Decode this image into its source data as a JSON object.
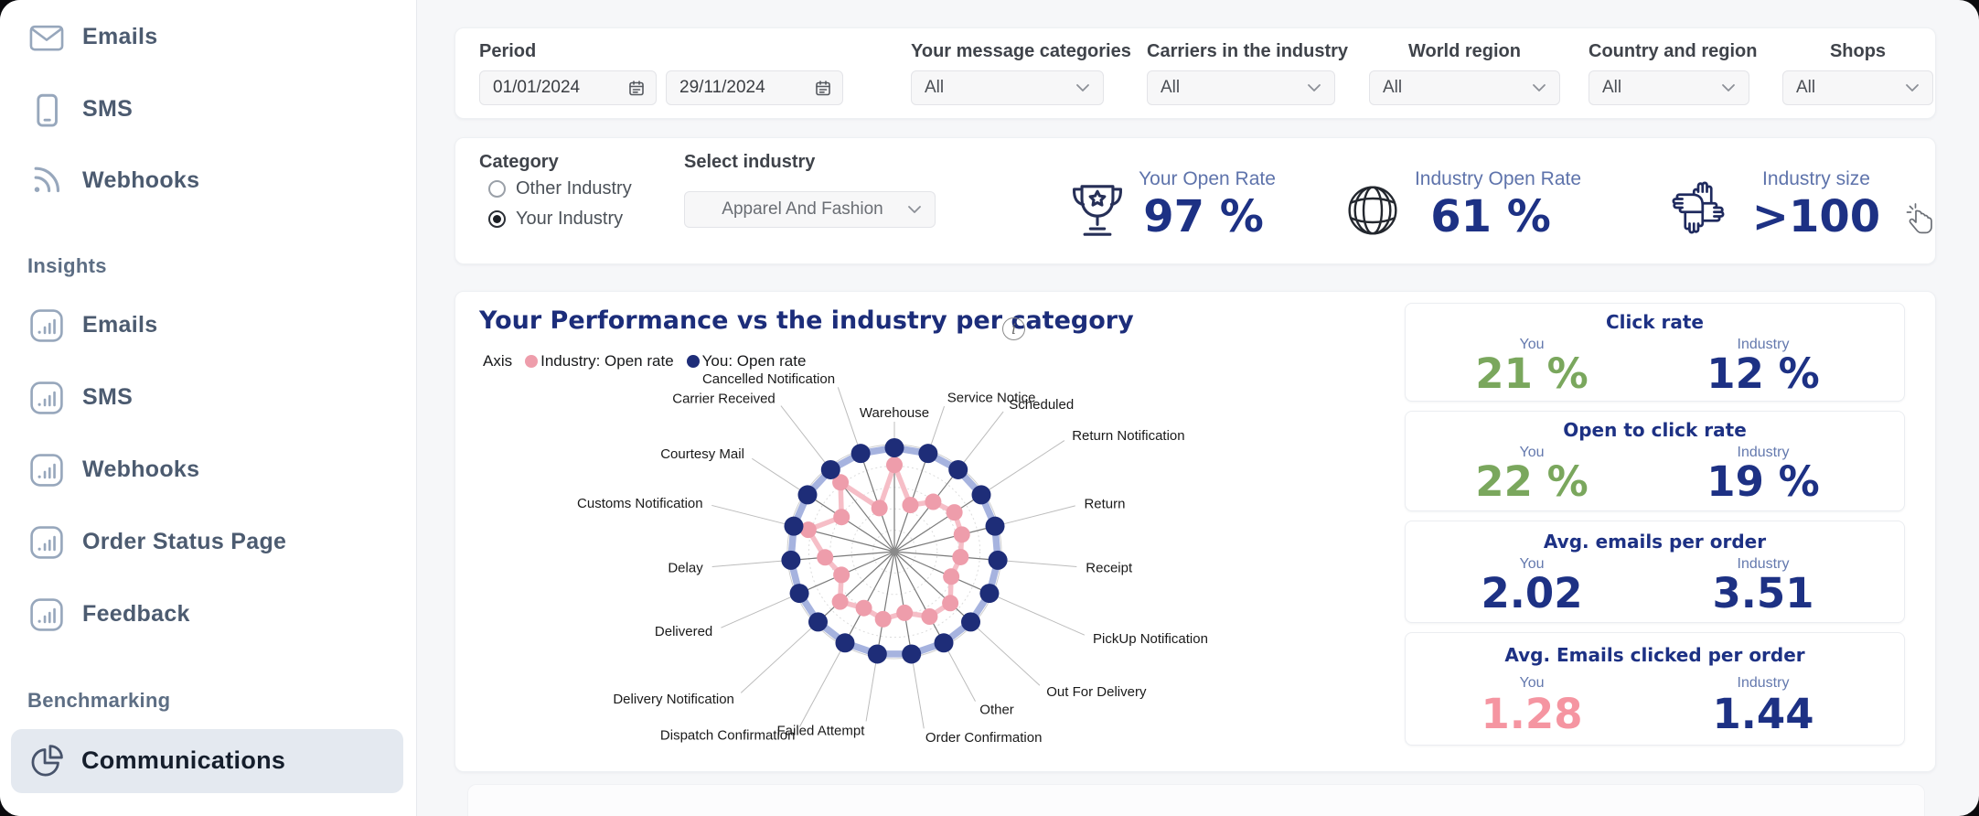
{
  "colors": {
    "navy": "#1d3184",
    "title_navy": "#1c2d7a",
    "green": "#7aa75d",
    "pink": "#f595a1",
    "series_you": "#1e2d78",
    "series_industry": "#ee9dab",
    "you_band": "#97a6d9",
    "industry_band": "#f5bac4"
  },
  "sidebar": {
    "channels": [
      {
        "label": "Emails",
        "icon": "mail-icon"
      },
      {
        "label": "SMS",
        "icon": "smartphone-icon"
      },
      {
        "label": "Webhooks",
        "icon": "rss-icon"
      }
    ],
    "insights": {
      "title": "Insights",
      "items": [
        {
          "label": "Emails"
        },
        {
          "label": "SMS"
        },
        {
          "label": "Webhooks"
        },
        {
          "label": "Order Status Page"
        },
        {
          "label": "Feedback"
        }
      ]
    },
    "benchmarking": {
      "title": "Benchmarking",
      "items": [
        {
          "label": "Communications",
          "active": true
        }
      ]
    }
  },
  "filters": {
    "period": {
      "label": "Period",
      "from": "01/01/2024",
      "to": "29/11/2024"
    },
    "dropdowns": [
      {
        "label": "Your message categories",
        "value": "All"
      },
      {
        "label": "Carriers in the industry",
        "value": "All"
      },
      {
        "label": "World region",
        "value": "All"
      },
      {
        "label": "Country and region",
        "value": "All"
      },
      {
        "label": "Shops",
        "value": "All"
      }
    ]
  },
  "industry_panel": {
    "category_label": "Category",
    "options": [
      {
        "label": "Other Industry",
        "selected": false
      },
      {
        "label": "Your Industry",
        "selected": true
      }
    ],
    "select_label": "Select industry",
    "selected_industry": "Apparel And Fashion",
    "kpis": [
      {
        "icon": "trophy-icon",
        "label": "Your Open Rate",
        "value": "97 %"
      },
      {
        "icon": "globe-icon",
        "label": "Industry Open Rate",
        "value": "61 %"
      },
      {
        "icon": "hands-icon",
        "label": "Industry size",
        "value": ">100"
      }
    ]
  },
  "performance": {
    "title": "Your Performance vs the industry per category",
    "legend_axis_label": "Axis",
    "legend": [
      {
        "name": "Industry: Open rate",
        "color": "#ee9dab"
      },
      {
        "name": "You: Open rate",
        "color": "#1e2d78"
      }
    ]
  },
  "chart_data": {
    "type": "radar",
    "title": "Your Performance vs the industry per category",
    "categories": [
      "Warehouse",
      "Service Notice",
      "Scheduled",
      "Return Notification",
      "Return",
      "Receipt",
      "PickUp Notification",
      "Out For Delivery",
      "Other",
      "Order Confirmation",
      "Failed Attempt",
      "Dispatch Confirmation",
      "Delivery Notification",
      "Delivered",
      "Delay",
      "Customs Notification",
      "Courtesy Mail",
      "Carrier Received",
      "Cancelled Notification"
    ],
    "series": [
      {
        "name": "You: Open rate",
        "color": "#1e2d78",
        "values": [
          97,
          97,
          97,
          97,
          97,
          97,
          97,
          97,
          97,
          97,
          97,
          97,
          97,
          97,
          97,
          97,
          97,
          97,
          97
        ]
      },
      {
        "name": "Industry: Open rate",
        "color": "#ee9dab",
        "values": [
          81,
          46,
          59,
          67,
          65,
          62,
          58,
          71,
          69,
          58,
          64,
          60,
          69,
          54,
          65,
          83,
          59,
          82,
          43
        ]
      }
    ],
    "scale": {
      "min": 0,
      "max": 100,
      "rings": 5
    },
    "legend_position": "top-left"
  },
  "stat_cards": [
    {
      "title": "Click rate",
      "col1_label": "You",
      "col1_value": "21 %",
      "col1_color": "green",
      "col2_label": "Industry",
      "col2_value": "12 %",
      "col2_color": "navy"
    },
    {
      "title": "Open to click rate",
      "col1_label": "You",
      "col1_value": "22 %",
      "col1_color": "green",
      "col2_label": "Industry",
      "col2_value": "19 %",
      "col2_color": "navy"
    },
    {
      "title": "Avg. emails per order",
      "col1_label": "You",
      "col1_value": "2.02",
      "col1_color": "navy",
      "col2_label": "Industry",
      "col2_value": "3.51",
      "col2_color": "navy"
    },
    {
      "title": "Avg. Emails clicked per order",
      "col1_label": "You",
      "col1_value": "1.28",
      "col1_color": "pink",
      "col2_label": "Industry",
      "col2_value": "1.44",
      "col2_color": "navy"
    }
  ]
}
